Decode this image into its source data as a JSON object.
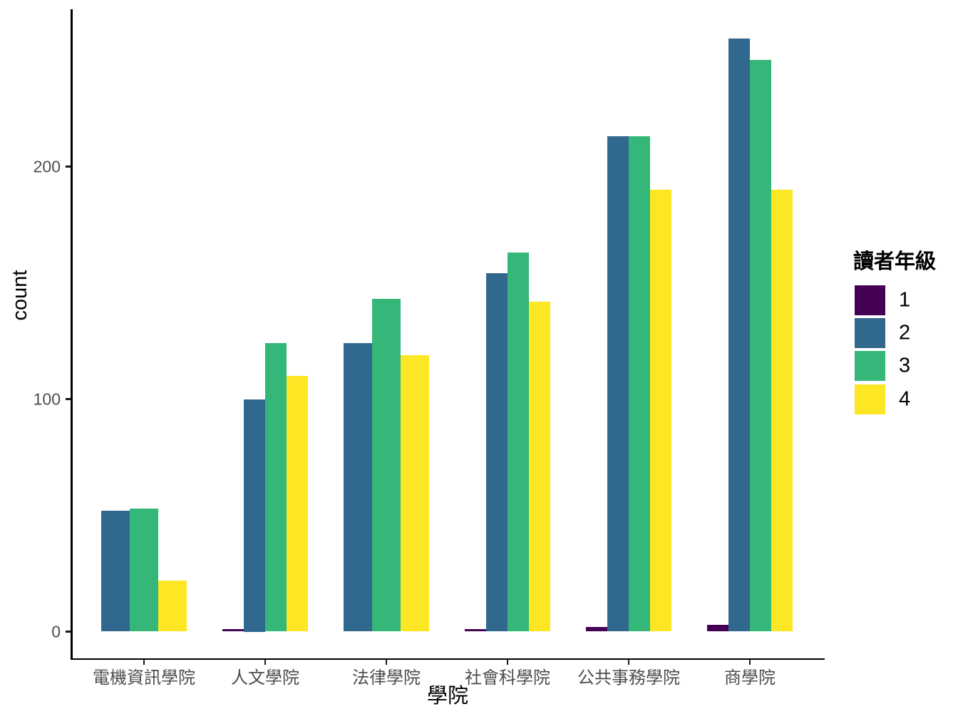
{
  "chart_data": {
    "type": "bar",
    "title": "",
    "xlabel": "學院",
    "ylabel": "count",
    "legend_title": "讀者年級",
    "legend_position": "right",
    "grid": false,
    "categories": [
      "電機資訊學院",
      "人文學院",
      "法律學院",
      "社會科學院",
      "公共事務學院",
      "商學院"
    ],
    "series": [
      {
        "name": "1",
        "color": "#440154",
        "values": [
          null,
          1,
          null,
          1,
          2,
          3
        ]
      },
      {
        "name": "2",
        "color": "#31688E",
        "values": [
          52,
          100,
          124,
          154,
          213,
          255
        ]
      },
      {
        "name": "3",
        "color": "#35B779",
        "values": [
          53,
          124,
          143,
          163,
          213,
          246
        ]
      },
      {
        "name": "4",
        "color": "#FDE725",
        "values": [
          22,
          110,
          119,
          142,
          190,
          190
        ]
      }
    ],
    "yticks": [
      "0",
      "100",
      "200"
    ],
    "ytick_values": [
      0,
      100,
      200
    ],
    "ylim": [
      0,
      268
    ]
  },
  "colors": {
    "background": "#FFFFFF",
    "axis_line": "#000000",
    "tick_text": "#4D4D4D",
    "title_text": "#000000"
  }
}
